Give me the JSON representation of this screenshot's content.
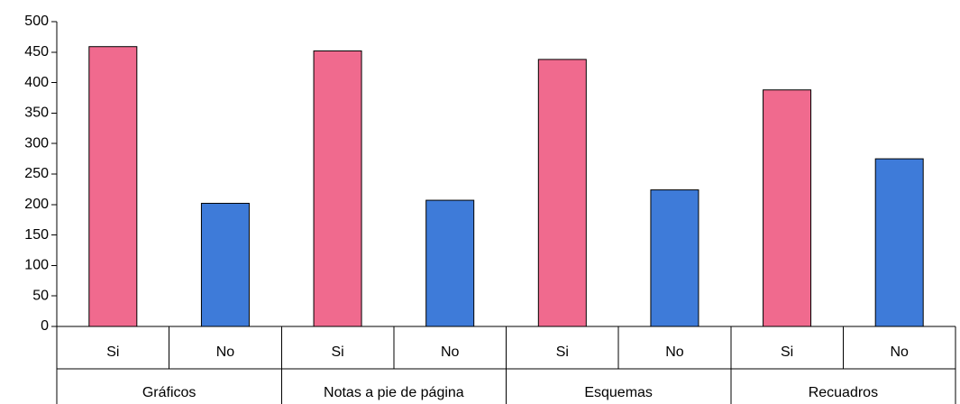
{
  "chart_data": {
    "type": "bar",
    "title": "",
    "xlabel": "",
    "ylabel": "",
    "ylim": [
      0,
      500
    ],
    "yticks": [
      0,
      50,
      100,
      150,
      200,
      250,
      300,
      350,
      400,
      450,
      500
    ],
    "grid": false,
    "legend": "none",
    "groups": [
      {
        "label": "Gráficos",
        "bars": [
          {
            "label": "Si",
            "value": 459
          },
          {
            "label": "No",
            "value": 202
          }
        ]
      },
      {
        "label": "Notas a pie de página",
        "bars": [
          {
            "label": "Si",
            "value": 452
          },
          {
            "label": "No",
            "value": 207
          }
        ]
      },
      {
        "label": "Esquemas",
        "bars": [
          {
            "label": "Si",
            "value": 438
          },
          {
            "label": "No",
            "value": 224
          }
        ]
      },
      {
        "label": "Recuadros",
        "bars": [
          {
            "label": "Si",
            "value": 388
          },
          {
            "label": "No",
            "value": 275
          }
        ]
      }
    ],
    "colors": {
      "Si": "#F06A8E",
      "No": "#3E7BD9"
    }
  }
}
